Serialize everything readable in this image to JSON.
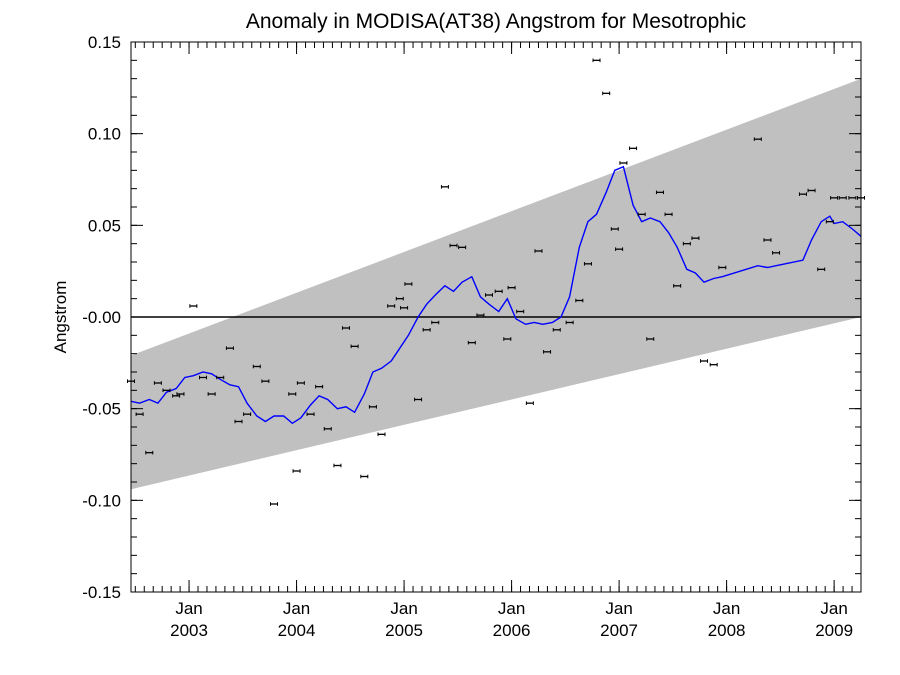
{
  "chart_data": {
    "type": "line",
    "title": "Anomaly in MODISA(AT38) Angstrom for Mesotrophic",
    "xlabel": "",
    "ylabel": "Angstrom",
    "xlim": [
      2002.46,
      2009.25
    ],
    "ylim": [
      -0.15,
      0.15
    ],
    "yticks": [
      -0.15,
      -0.1,
      -0.05,
      0.0,
      0.05,
      0.1,
      0.15
    ],
    "ytick_labels": [
      "-0.15",
      "-0.10",
      "-0.05",
      "-0.00",
      "0.05",
      "0.10",
      "0.15"
    ],
    "xticks": [
      {
        "value": 2003.0,
        "label1": "Jan",
        "label2": "2003"
      },
      {
        "value": 2004.0,
        "label1": "Jan",
        "label2": "2004"
      },
      {
        "value": 2005.0,
        "label1": "Jan",
        "label2": "2005"
      },
      {
        "value": 2006.0,
        "label1": "Jan",
        "label2": "2006"
      },
      {
        "value": 2007.0,
        "label1": "Jan",
        "label2": "2007"
      },
      {
        "value": 2008.0,
        "label1": "Jan",
        "label2": "2008"
      },
      {
        "value": 2009.0,
        "label1": "Jan",
        "label2": "2009"
      }
    ],
    "grid": false,
    "legend": "none",
    "colors": {
      "band": "#c0c0c0",
      "smooth_line": "#0000ff",
      "zero_line": "#000000",
      "points": "#000000"
    },
    "confidence_band": {
      "upper": [
        [
          2002.46,
          -0.021
        ],
        [
          2009.25,
          0.13
        ]
      ],
      "lower": [
        [
          2002.46,
          -0.094
        ],
        [
          2009.25,
          0.0
        ]
      ]
    },
    "zero_line": 0.0,
    "series": [
      {
        "kind": "points",
        "x": [
          2002.46,
          2002.54,
          2002.63,
          2002.71,
          2002.79,
          2002.88,
          2002.92,
          2003.04,
          2003.13,
          2003.21,
          2003.29,
          2003.38,
          2003.46,
          2003.54,
          2003.63,
          2003.71,
          2003.79,
          2003.96,
          2004.0,
          2004.04,
          2004.13,
          2004.21,
          2004.29,
          2004.38,
          2004.46,
          2004.54,
          2004.63,
          2004.71,
          2004.79,
          2004.88,
          2004.96,
          2005.0,
          2005.04,
          2005.13,
          2005.21,
          2005.29,
          2005.38,
          2005.46,
          2005.54,
          2005.63,
          2005.71,
          2005.79,
          2005.88,
          2005.96,
          2006.0,
          2006.08,
          2006.17,
          2006.25,
          2006.33,
          2006.42,
          2006.54,
          2006.63,
          2006.71,
          2006.79,
          2006.88,
          2006.96,
          2007.0,
          2007.04,
          2007.13,
          2007.21,
          2007.29,
          2007.38,
          2007.46,
          2007.54,
          2007.63,
          2007.71,
          2007.79,
          2007.88,
          2007.96,
          2008.29,
          2008.38,
          2008.46,
          2008.71,
          2008.79,
          2008.88,
          2008.96,
          2009.0,
          2009.08,
          2009.17,
          2009.25
        ],
        "y": [
          -0.035,
          -0.053,
          -0.074,
          -0.036,
          -0.04,
          -0.043,
          -0.042,
          0.006,
          -0.033,
          -0.042,
          -0.033,
          -0.017,
          -0.057,
          -0.053,
          -0.027,
          -0.035,
          -0.102,
          -0.042,
          -0.084,
          -0.036,
          -0.053,
          -0.038,
          -0.061,
          -0.081,
          -0.006,
          -0.016,
          -0.087,
          -0.049,
          -0.064,
          0.006,
          0.01,
          0.005,
          0.018,
          -0.045,
          -0.007,
          -0.003,
          0.071,
          0.039,
          0.038,
          -0.014,
          0.001,
          0.012,
          0.014,
          -0.012,
          0.016,
          0.003,
          -0.047,
          0.036,
          -0.019,
          -0.007,
          -0.003,
          0.009,
          0.029,
          0.14,
          0.122,
          0.048,
          0.037,
          0.084,
          0.092,
          0.056,
          -0.012,
          0.068,
          0.056,
          0.017,
          0.04,
          0.043,
          -0.024,
          -0.026,
          0.027,
          0.097,
          0.042,
          0.035,
          0.067,
          0.069,
          0.026,
          0.052,
          0.065,
          0.065,
          0.065,
          0.065
        ]
      },
      {
        "kind": "smoothed",
        "x": [
          2002.46,
          2002.54,
          2002.63,
          2002.71,
          2002.79,
          2002.88,
          2002.96,
          2003.04,
          2003.13,
          2003.21,
          2003.29,
          2003.38,
          2003.46,
          2003.54,
          2003.63,
          2003.71,
          2003.79,
          2003.88,
          2003.96,
          2004.04,
          2004.13,
          2004.21,
          2004.29,
          2004.38,
          2004.46,
          2004.54,
          2004.63,
          2004.71,
          2004.79,
          2004.88,
          2004.96,
          2005.04,
          2005.13,
          2005.21,
          2005.29,
          2005.38,
          2005.46,
          2005.54,
          2005.63,
          2005.71,
          2005.79,
          2005.88,
          2005.96,
          2006.04,
          2006.13,
          2006.21,
          2006.29,
          2006.38,
          2006.46,
          2006.54,
          2006.63,
          2006.71,
          2006.79,
          2006.88,
          2006.96,
          2007.04,
          2007.13,
          2007.21,
          2007.29,
          2007.38,
          2007.46,
          2007.54,
          2007.63,
          2007.71,
          2007.79,
          2007.88,
          2007.96,
          2008.29,
          2008.38,
          2008.46,
          2008.71,
          2008.79,
          2008.88,
          2008.96,
          2009.0,
          2009.08,
          2009.17,
          2009.25
        ],
        "y": [
          -0.046,
          -0.047,
          -0.045,
          -0.047,
          -0.041,
          -0.039,
          -0.033,
          -0.032,
          -0.03,
          -0.031,
          -0.034,
          -0.037,
          -0.038,
          -0.047,
          -0.054,
          -0.057,
          -0.054,
          -0.054,
          -0.058,
          -0.055,
          -0.048,
          -0.043,
          -0.045,
          -0.05,
          -0.049,
          -0.052,
          -0.042,
          -0.03,
          -0.028,
          -0.024,
          -0.017,
          -0.01,
          0.0,
          0.007,
          0.012,
          0.017,
          0.014,
          0.019,
          0.022,
          0.011,
          0.007,
          0.003,
          0.01,
          -0.001,
          -0.004,
          -0.003,
          -0.004,
          -0.003,
          0.0,
          0.011,
          0.038,
          0.052,
          0.056,
          0.068,
          0.08,
          0.082,
          0.061,
          0.052,
          0.054,
          0.052,
          0.046,
          0.038,
          0.026,
          0.024,
          0.019,
          0.021,
          0.022,
          0.028,
          0.027,
          0.028,
          0.031,
          0.042,
          0.052,
          0.055,
          0.051,
          0.052,
          0.048,
          0.044
        ]
      }
    ]
  }
}
